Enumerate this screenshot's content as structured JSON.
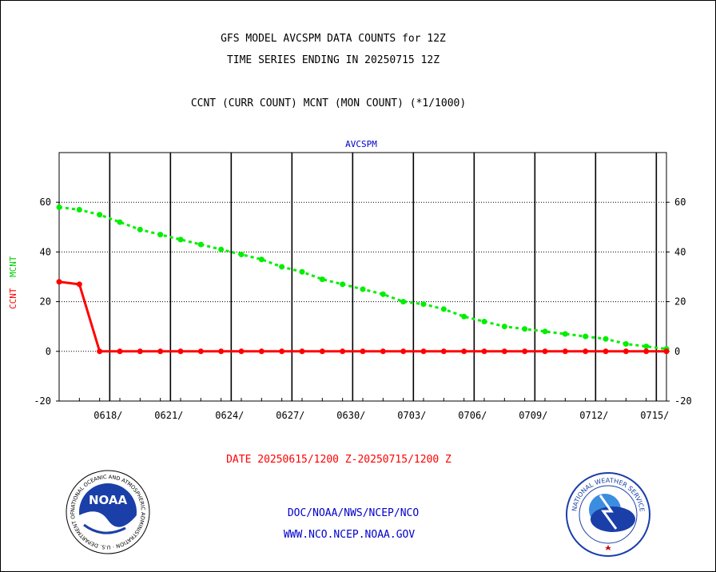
{
  "header": {
    "title_line1": "GFS MODEL AVCSPM DATA COUNTS for 12Z",
    "title_line2": "TIME SERIES ENDING IN 20250715 12Z",
    "subtitle": "CCNT (CURR COUNT) MCNT (MON COUNT) (*1/1000)"
  },
  "footer": {
    "date_range": "DATE 20250615/1200 Z-20250715/1200 Z",
    "link1": "DOC/NOAA/NWS/NCEP/NCO",
    "link2": "WWW.NCO.NCEP.NOAA.GOV"
  },
  "logos": {
    "left_text": "NOAA",
    "left_ring": "NATIONAL OCEANIC AND ATMOSPHERIC ADMINISTRATION · U.S. DEPARTMENT OF COMMERCE",
    "right_ring": "NATIONAL WEATHER SERVICE"
  },
  "colors": {
    "ccnt": "#ff0000",
    "mcnt": "#00ee00",
    "title": "#000000",
    "panel_title": "#0000cc",
    "date": "#ff0000",
    "links": "#0000cc"
  },
  "chart_data": {
    "type": "line",
    "title": "AVCSPM",
    "ylabel_ccnt": "CCNT",
    "ylabel_mcnt": "MCNT",
    "xlim": [
      0,
      30
    ],
    "ylim": [
      -20,
      80
    ],
    "yticks": [
      -20,
      0,
      20,
      40,
      60
    ],
    "grid": true,
    "x_ticks": [
      {
        "x": 2.5,
        "label": "0618/"
      },
      {
        "x": 5.5,
        "label": "0621/"
      },
      {
        "x": 8.5,
        "label": "0624/"
      },
      {
        "x": 11.5,
        "label": "0627/"
      },
      {
        "x": 14.5,
        "label": "0630/"
      },
      {
        "x": 17.5,
        "label": "0703/"
      },
      {
        "x": 20.5,
        "label": "0706/"
      },
      {
        "x": 23.5,
        "label": "0709/"
      },
      {
        "x": 26.5,
        "label": "0712/"
      },
      {
        "x": 29.5,
        "label": "0715/"
      }
    ],
    "vertical_lines": [
      2.5,
      5.5,
      8.5,
      11.5,
      14.5,
      17.5,
      20.5,
      23.5,
      26.5,
      29.5
    ],
    "series": [
      {
        "name": "CCNT",
        "color": "#ff0000",
        "style": "solid",
        "x": [
          0,
          1,
          2,
          3,
          4,
          5,
          6,
          7,
          8,
          9,
          10,
          11,
          12,
          13,
          14,
          15,
          16,
          17,
          18,
          19,
          20,
          21,
          22,
          23,
          24,
          25,
          26,
          27,
          28,
          29,
          30
        ],
        "y": [
          28,
          27,
          0,
          0,
          0,
          0,
          0,
          0,
          0,
          0,
          0,
          0,
          0,
          0,
          0,
          0,
          0,
          0,
          0,
          0,
          0,
          0,
          0,
          0,
          0,
          0,
          0,
          0,
          0,
          0,
          0
        ]
      },
      {
        "name": "MCNT",
        "color": "#00ee00",
        "style": "dashed",
        "x": [
          0,
          1,
          2,
          3,
          4,
          5,
          6,
          7,
          8,
          9,
          10,
          11,
          12,
          13,
          14,
          15,
          16,
          17,
          18,
          19,
          20,
          21,
          22,
          23,
          24,
          25,
          26,
          27,
          28,
          29,
          30
        ],
        "y": [
          58,
          57,
          55,
          52,
          49,
          47,
          45,
          43,
          41,
          39,
          37,
          34,
          32,
          29,
          27,
          25,
          23,
          20,
          19,
          17,
          14,
          12,
          10,
          9,
          8,
          7,
          6,
          5,
          3,
          2,
          1
        ]
      }
    ]
  }
}
